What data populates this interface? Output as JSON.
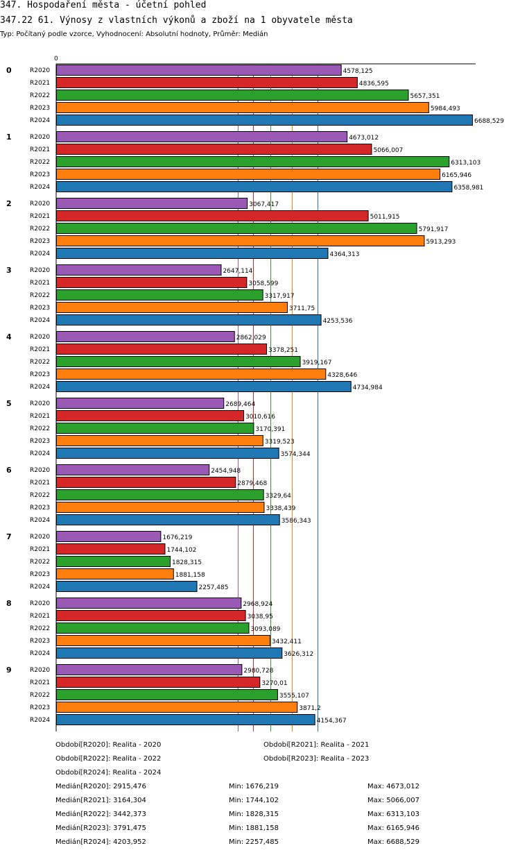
{
  "header": {
    "title": "347. Hospodaření města - účetní pohled",
    "subtitle": "347.22 61. Výnosy z vlastních výkonů a zboží na 1 obyvatele města",
    "type_line": "Typ: Počítaný podle vzorce, Vyhodnocení: Absolutní hodnoty, Průměr: Medián"
  },
  "chart_data": {
    "type": "bar",
    "orientation": "horizontal",
    "axis_zero_label": "0",
    "xlim": [
      0,
      6688.529
    ],
    "groups": [
      "0",
      "1",
      "2",
      "3",
      "4",
      "5",
      "6",
      "7",
      "8",
      "9"
    ],
    "series": [
      {
        "name": "R2020",
        "color": "#9b59b6",
        "labels": [
          "4578,125",
          "4673,012",
          "3067,417",
          "2647,114",
          "2862,029",
          "2689,464",
          "2454,948",
          "1676,219",
          "2968,924",
          "2980,728"
        ],
        "values": [
          4578.125,
          4673.012,
          3067.417,
          2647.114,
          2862.029,
          2689.464,
          2454.948,
          1676.219,
          2968.924,
          2980.728
        ]
      },
      {
        "name": "R2021",
        "color": "#d62728",
        "labels": [
          "4836,595",
          "5066,007",
          "5011,915",
          "3058,599",
          "3378,251",
          "3010,616",
          "2879,468",
          "1744,102",
          "3038,95",
          "3270,01"
        ],
        "values": [
          4836.595,
          5066.007,
          5011.915,
          3058.599,
          3378.251,
          3010.616,
          2879.468,
          1744.102,
          3038.95,
          3270.01
        ]
      },
      {
        "name": "R2022",
        "color": "#2ca02c",
        "labels": [
          "5657,351",
          "6313,103",
          "5791,917",
          "3317,917",
          "3919,167",
          "3170,391",
          "3329,64",
          "1828,315",
          "3093,089",
          "3555,107"
        ],
        "values": [
          5657.351,
          6313.103,
          5791.917,
          3317.917,
          3919.167,
          3170.391,
          3329.64,
          1828.315,
          3093.089,
          3555.107
        ]
      },
      {
        "name": "R2023",
        "color": "#ff7f0e",
        "labels": [
          "5984,493",
          "6165,946",
          "5913,293",
          "3711,75",
          "4328,646",
          "3319,523",
          "3338,439",
          "1881,158",
          "3432,411",
          "3871,2"
        ],
        "values": [
          5984.493,
          6165.946,
          5913.293,
          3711.75,
          4328.646,
          3319.523,
          3338.439,
          1881.158,
          3432.411,
          3871.2
        ]
      },
      {
        "name": "R2024",
        "color": "#1f77b4",
        "labels": [
          "6688,529",
          "6358,981",
          "4364,313",
          "4253,536",
          "4734,984",
          "3574,344",
          "3586,343",
          "2257,485",
          "3626,312",
          "4154,367"
        ],
        "values": [
          6688.529,
          6358.981,
          4364.313,
          4253.536,
          4734.984,
          3574.344,
          3586.343,
          2257.485,
          3626.312,
          4154.367
        ]
      }
    ],
    "median_lines": [
      {
        "series": "R2020",
        "value": 2915.476,
        "color": "#9b59b6"
      },
      {
        "series": "R2021",
        "value": 3164.304,
        "color": "#d62728"
      },
      {
        "series": "R2022",
        "value": 3442.373,
        "color": "#2ca02c"
      },
      {
        "series": "R2023",
        "value": 3791.475,
        "color": "#ff7f0e"
      },
      {
        "series": "R2024",
        "value": 4203.952,
        "color": "#1f77b4"
      }
    ]
  },
  "legend": {
    "periods": [
      "Období[R2020]: Realita - 2020",
      "Období[R2021]: Realita - 2021",
      "Období[R2022]: Realita - 2022",
      "Období[R2023]: Realita - 2023",
      "Období[R2024]: Realita - 2024"
    ],
    "stats": [
      {
        "median": "Medián[R2020]: 2915,476",
        "min": "Min: 1676,219",
        "max": "Max: 4673,012"
      },
      {
        "median": "Medián[R2021]: 3164,304",
        "min": "Min: 1744,102",
        "max": "Max: 5066,007"
      },
      {
        "median": "Medián[R2022]: 3442,373",
        "min": "Min: 1828,315",
        "max": "Max: 6313,103"
      },
      {
        "median": "Medián[R2023]: 3791,475",
        "min": "Min: 1881,158",
        "max": "Max: 6165,946"
      },
      {
        "median": "Medián[R2024]: 4203,952",
        "min": "Min: 2257,485",
        "max": "Max: 6688,529"
      }
    ]
  }
}
